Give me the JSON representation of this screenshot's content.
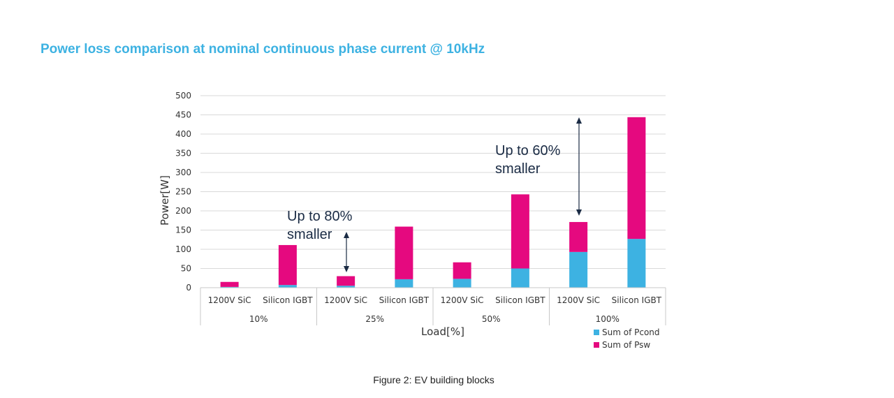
{
  "title": "Power loss comparison at nominal continuous phase current @ 10kHz",
  "caption": "Figure 2: EV building blocks",
  "colors": {
    "title": "#3db2e2",
    "pcond": "#3db2e2",
    "psw": "#e5097f",
    "grid": "#d9d9d9",
    "arrow": "#1a2b44"
  },
  "chart_data": {
    "type": "bar",
    "stacked": true,
    "title": "Power loss comparison at nominal continuous phase current @ 10kHz",
    "xlabel": "Load[%]",
    "ylabel": "Power[W]",
    "ylim": [
      0,
      500
    ],
    "yticks": [
      0,
      50,
      100,
      150,
      200,
      250,
      300,
      350,
      400,
      450,
      500
    ],
    "grid": true,
    "legend_position": "bottom-right",
    "groups": [
      "10%",
      "25%",
      "50%",
      "100%"
    ],
    "categories": [
      "1200V SiC",
      "Silicon IGBT",
      "1200V SiC",
      "Silicon IGBT",
      "1200V SiC",
      "Silicon IGBT",
      "1200V SiC",
      "Silicon IGBT"
    ],
    "series": [
      {
        "name": "Sum of Pcond",
        "values": [
          2,
          7,
          5,
          22,
          23,
          50,
          93,
          127
        ]
      },
      {
        "name": "Sum of Psw",
        "values": [
          13,
          104,
          25,
          137,
          43,
          193,
          78,
          317
        ]
      }
    ],
    "annotations": [
      {
        "lines": [
          "Up to 80%",
          "smaller"
        ],
        "group": "25%"
      },
      {
        "lines": [
          "Up to 60%",
          "smaller"
        ],
        "group": "100%"
      }
    ]
  }
}
